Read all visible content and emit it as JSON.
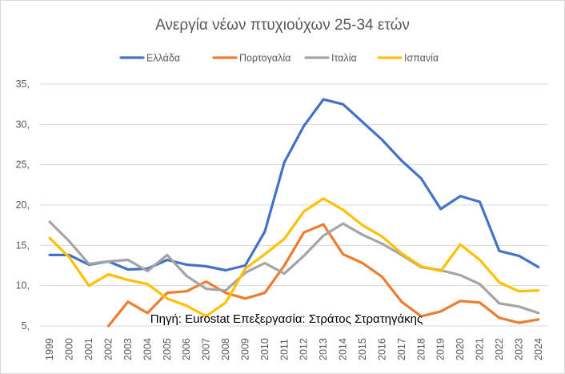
{
  "chart_data": {
    "type": "line",
    "title": "Ανεργία νέων πτυχιούχων 25-34 ετών",
    "source_note": "Πηγή: Eurostat Επεξεργασία: Στράτος Στρατηγάκης",
    "xlabel": "",
    "ylabel": "",
    "ylim": [
      5,
      35
    ],
    "yticks": [
      "5,",
      "10,",
      "15,",
      "20,",
      "25,",
      "30,",
      "35,"
    ],
    "grid": true,
    "legend_position": "top",
    "categories": [
      "1999",
      "2000",
      "2001",
      "2002",
      "2003",
      "2004",
      "2005",
      "2006",
      "2007",
      "2008",
      "2009",
      "2010",
      "2011",
      "2012",
      "2013",
      "2014",
      "2015",
      "2016",
      "2017",
      "2018",
      "2019",
      "2020",
      "2021",
      "2022",
      "2023",
      "2024"
    ],
    "series": [
      {
        "name": "Ελλάδα",
        "color": "#4472c4",
        "values": [
          13.8,
          13.8,
          12.6,
          13.0,
          12.0,
          12.1,
          13.2,
          12.6,
          12.4,
          11.9,
          12.5,
          16.7,
          25.3,
          29.8,
          33.1,
          32.5,
          30.3,
          28.1,
          25.5,
          23.3,
          19.5,
          21.1,
          20.4,
          14.3,
          13.7,
          12.3
        ]
      },
      {
        "name": "Πορτογαλία",
        "color": "#ed7d31",
        "values": [
          null,
          null,
          null,
          5.0,
          8.0,
          6.6,
          9.1,
          9.3,
          10.5,
          9.1,
          8.4,
          9.1,
          12.5,
          16.6,
          17.6,
          13.9,
          12.8,
          11.1,
          8.0,
          6.2,
          6.8,
          8.1,
          7.9,
          6.0,
          5.4,
          5.8
        ]
      },
      {
        "name": "Ιταλία",
        "color": "#a5a5a5",
        "values": [
          17.9,
          15.5,
          12.7,
          13.0,
          13.2,
          11.8,
          13.8,
          11.2,
          9.6,
          9.4,
          11.6,
          12.8,
          11.5,
          13.7,
          16.2,
          17.7,
          16.3,
          15.2,
          13.8,
          12.3,
          11.9,
          11.3,
          10.2,
          7.8,
          7.4,
          6.6
        ]
      },
      {
        "name": "Ισπανία",
        "color": "#ffc000",
        "values": [
          15.9,
          13.5,
          10.0,
          11.4,
          10.7,
          10.2,
          8.4,
          7.5,
          6.2,
          7.9,
          12.1,
          13.9,
          15.8,
          19.2,
          20.8,
          19.4,
          17.5,
          16.1,
          14.0,
          12.4,
          11.8,
          15.1,
          13.2,
          10.4,
          9.3,
          9.4
        ]
      }
    ]
  }
}
